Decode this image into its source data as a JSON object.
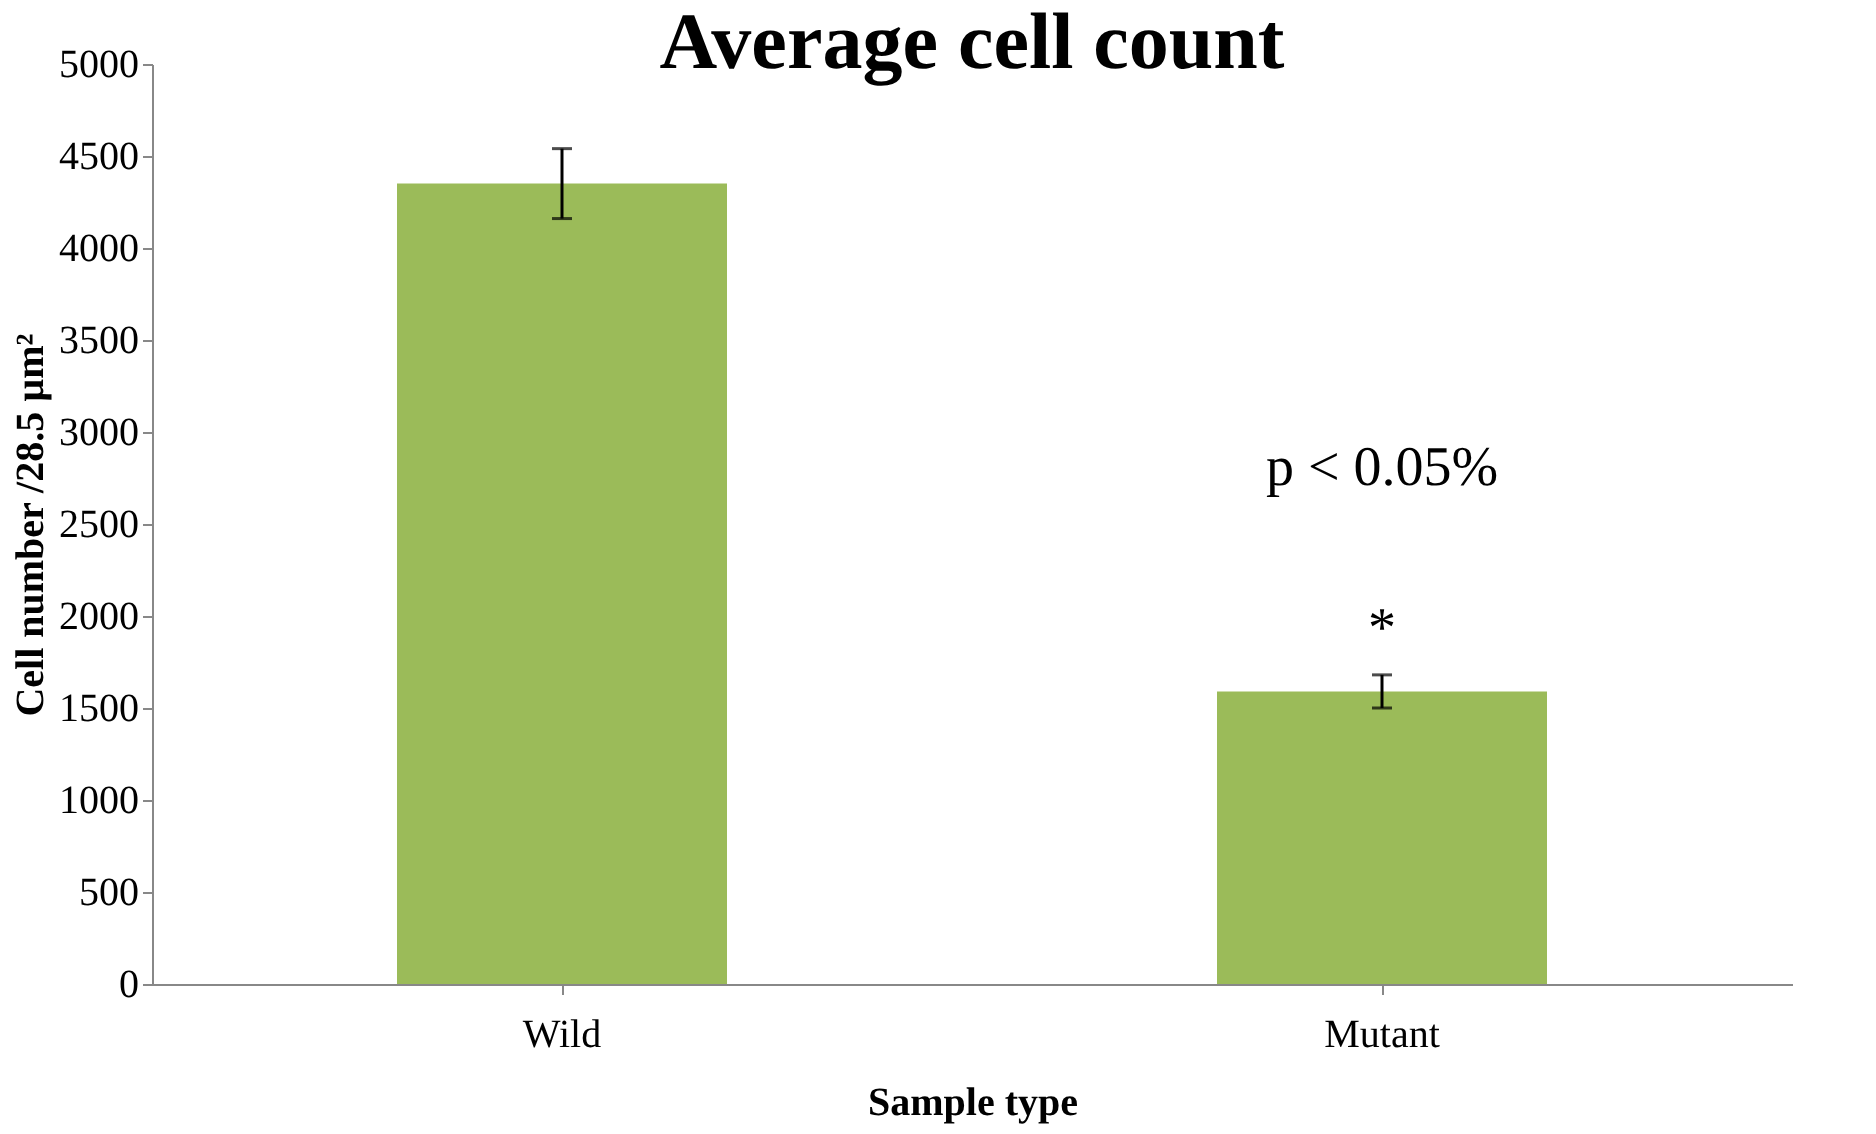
{
  "chart_data": {
    "type": "bar",
    "title": "Average cell count",
    "xlabel": "Sample type",
    "ylabel": "Cell number /28.5 µm²",
    "categories": [
      "Wild",
      "Mutant"
    ],
    "values": [
      4350,
      1590
    ],
    "color": "#9bbb59",
    "errors": [
      190,
      90
    ],
    "ylim": [
      0,
      5000
    ],
    "yticks": [
      0,
      500,
      1000,
      1500,
      2000,
      2500,
      3000,
      3500,
      4000,
      4500,
      5000
    ],
    "grid": false,
    "annotations": [
      "*",
      "p < 0.05%"
    ]
  }
}
